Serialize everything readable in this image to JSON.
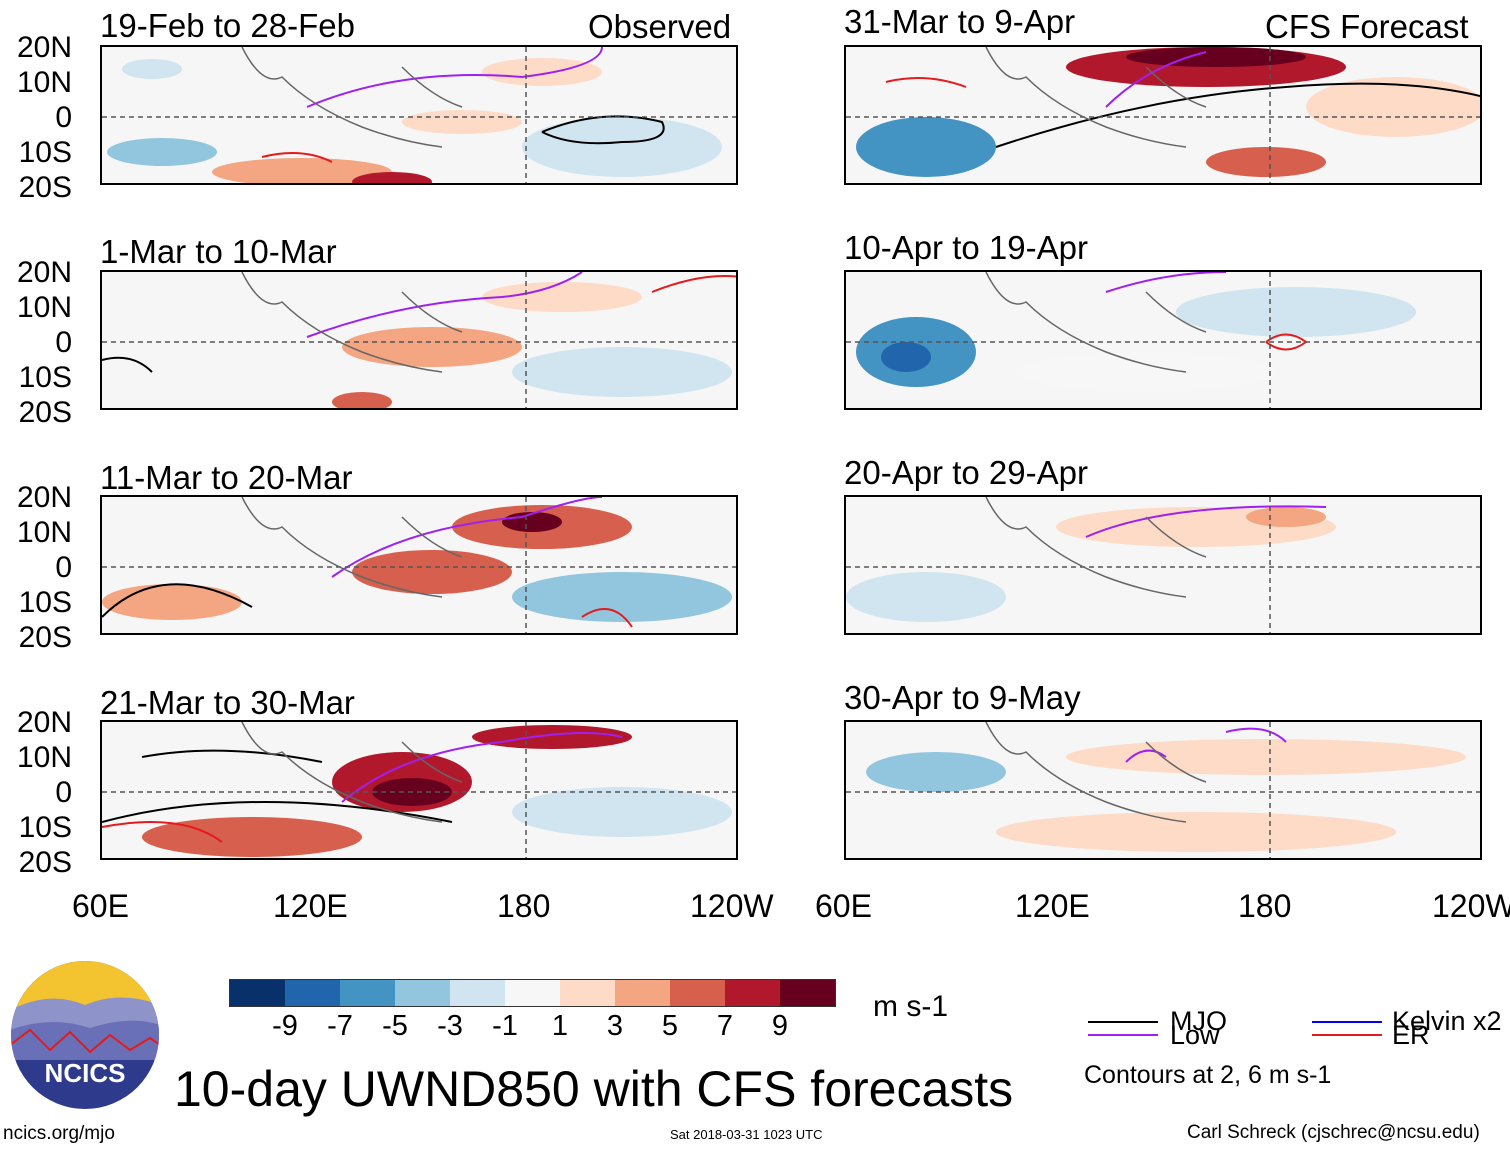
{
  "header": {
    "observed_label": "Observed",
    "forecast_label": "CFS Forecast"
  },
  "panels": [
    {
      "title": "19-Feb to 28-Feb",
      "column": "left"
    },
    {
      "title": "1-Mar to 10-Mar",
      "column": "left"
    },
    {
      "title": "11-Mar to 20-Mar",
      "column": "left"
    },
    {
      "title": "21-Mar to 30-Mar",
      "column": "left"
    },
    {
      "title": "31-Mar to 9-Apr",
      "column": "right"
    },
    {
      "title": "10-Apr to 19-Apr",
      "column": "right"
    },
    {
      "title": "20-Apr to 29-Apr",
      "column": "right"
    },
    {
      "title": "30-Apr to 9-May",
      "column": "right"
    }
  ],
  "axes": {
    "lat_labels": [
      "20N",
      "10N",
      "0",
      "10S",
      "20S"
    ],
    "lon_labels": [
      "60E",
      "120E",
      "180",
      "120W"
    ]
  },
  "colorbar": {
    "colors": [
      "#08306b",
      "#2166ac",
      "#4393c3",
      "#92c5de",
      "#d1e5f0",
      "#f7f7f7",
      "#fddbc7",
      "#f4a582",
      "#d6604d",
      "#b2182b",
      "#67001f"
    ],
    "labels": [
      "-9",
      "-7",
      "-5",
      "-3",
      "-1",
      "1",
      "3",
      "5",
      "7",
      "9"
    ],
    "units": "m s-1"
  },
  "title": "10-day UWND850 with CFS forecasts",
  "legend": {
    "items": [
      {
        "label": "MJO",
        "color": "#000000"
      },
      {
        "label": "Low",
        "color": "#a020f0"
      },
      {
        "label": "Kelvin x2",
        "color": "#0000ff"
      },
      {
        "label": "ER",
        "color": "#e41a1c"
      }
    ],
    "contour_note": "Contours at 2, 6 m s-1"
  },
  "footer": {
    "left": "ncics.org/mjo",
    "middle": "Sat 2018-03-31 1023 UTC",
    "right": "Carl Schreck (cjschrec@ncsu.edu)"
  },
  "logo": {
    "text": "NCICS"
  }
}
